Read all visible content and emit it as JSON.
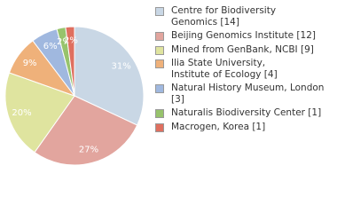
{
  "chart_data": {
    "type": "pie",
    "categories": [
      "Centre for Biodiversity\nGenomics [14]",
      "Beijing Genomics Institute [12]",
      "Mined from GenBank, NCBI [9]",
      "Ilia State University,\nInstitute of Ecology [4]",
      "Natural History Museum, London [3]",
      "Naturalis Biodiversity Center [1]",
      "Macrogen, Korea [1]"
    ],
    "values": [
      31,
      27,
      20,
      9,
      6,
      2,
      2
    ],
    "value_labels": [
      "31%",
      "27%",
      "20%",
      "9%",
      "6%",
      "2%",
      "2%"
    ],
    "colors": [
      "#c9d7e5",
      "#e2a59e",
      "#dfe49f",
      "#efb17a",
      "#a0b8df",
      "#97c36c",
      "#df6f5f"
    ]
  }
}
